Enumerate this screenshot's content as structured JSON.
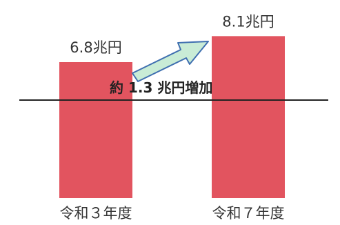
{
  "chart_data": {
    "type": "bar",
    "categories": [
      "令和３年度",
      "令和７年度"
    ],
    "values": [
      6.8,
      8.1
    ],
    "value_labels": [
      "6.8兆円",
      "8.1兆円"
    ],
    "unit": "兆円",
    "annotation": "約 1.3 兆円増加",
    "title": "",
    "xlabel": "",
    "ylabel": "",
    "grid": false,
    "legend": "none",
    "colors": {
      "bar": "#e2545f",
      "arrow_fill": "#c9ecd6",
      "arrow_stroke": "#3f6fb0",
      "axis": "#222222"
    }
  }
}
